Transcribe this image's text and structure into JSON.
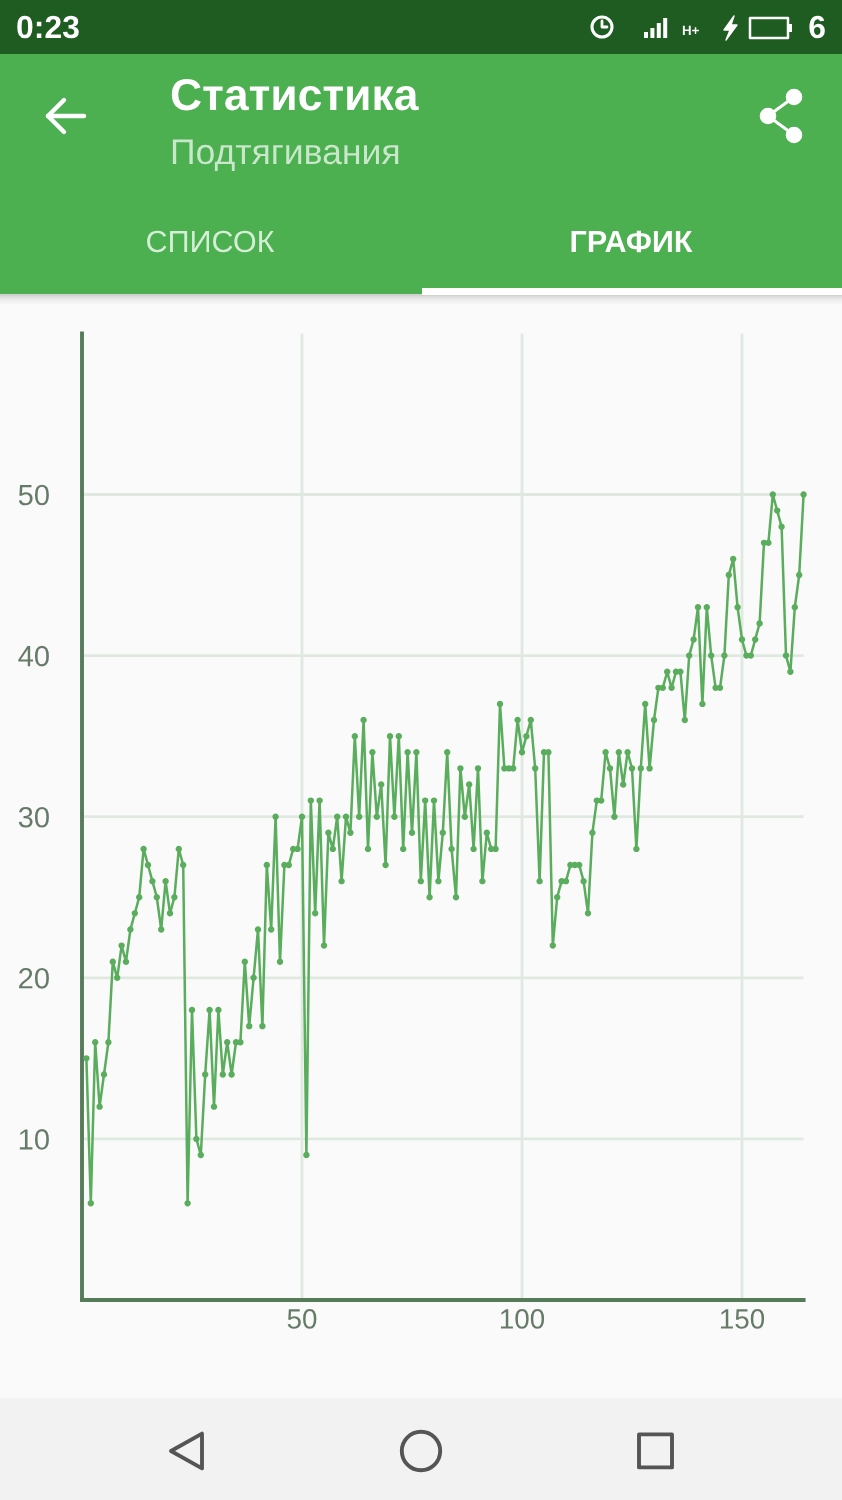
{
  "chart_data": {
    "type": "line",
    "title": "Статистика",
    "subtitle": "Подтягивания",
    "annotations": [
      "0:23",
      "H+",
      "6",
      "СПИСОК",
      "ГРАФИК"
    ],
    "x": [
      1,
      2,
      3,
      4,
      5,
      6,
      7,
      8,
      9,
      10,
      11,
      12,
      13,
      14,
      15,
      16,
      17,
      18,
      19,
      20,
      21,
      22,
      23,
      24,
      25,
      26,
      27,
      28,
      29,
      30,
      31,
      32,
      33,
      34,
      35,
      36,
      37,
      38,
      39,
      40,
      41,
      42,
      43,
      44,
      45,
      46,
      47,
      48,
      49,
      50,
      51,
      52,
      53,
      54,
      55,
      56,
      57,
      58,
      59,
      60,
      61,
      62,
      63,
      64,
      65,
      66,
      67,
      68,
      69,
      70,
      71,
      72,
      73,
      74,
      75,
      76,
      77,
      78,
      79,
      80,
      81,
      82,
      83,
      84,
      85,
      86,
      87,
      88,
      89,
      90,
      91,
      92,
      93,
      94,
      95,
      96,
      97,
      98,
      99,
      100,
      101,
      102,
      103,
      104,
      105,
      106,
      107,
      108,
      109,
      110,
      111,
      112,
      113,
      114,
      115,
      116,
      117,
      118,
      119,
      120,
      121,
      122,
      123,
      124,
      125,
      126,
      127,
      128,
      129,
      130,
      131,
      132,
      133,
      134,
      135,
      136,
      137,
      138,
      139,
      140,
      141,
      142,
      143,
      144,
      145,
      146,
      147,
      148,
      149,
      150,
      151,
      152,
      153,
      154,
      155,
      156,
      157,
      158,
      159,
      160,
      161,
      162,
      163,
      164
    ],
    "series": [
      {
        "color": "#5aad5c",
        "values": [
          15,
          6,
          16,
          12,
          14,
          16,
          21,
          20,
          22,
          21,
          23,
          24,
          25,
          28,
          27,
          26,
          25,
          23,
          26,
          24,
          25,
          28,
          27,
          6,
          18,
          10,
          9,
          14,
          18,
          12,
          18,
          14,
          16,
          14,
          16,
          16,
          21,
          17,
          20,
          23,
          17,
          27,
          23,
          30,
          21,
          27,
          27,
          28,
          28,
          30,
          9,
          31,
          24,
          31,
          22,
          29,
          28,
          30,
          26,
          30,
          29,
          35,
          30,
          36,
          28,
          34,
          30,
          32,
          27,
          35,
          30,
          35,
          28,
          34,
          29,
          34,
          26,
          31,
          25,
          31,
          26,
          29,
          34,
          28,
          25,
          33,
          30,
          32,
          28,
          33,
          26,
          29,
          28,
          28,
          37,
          33,
          33,
          33,
          36,
          34,
          35,
          36,
          33,
          26,
          34,
          34,
          22,
          25,
          26,
          26,
          27,
          27,
          27,
          26,
          24,
          29,
          31,
          31,
          34,
          33,
          30,
          34,
          32,
          34,
          33,
          28,
          33,
          37,
          33,
          36,
          38,
          38,
          39,
          38,
          39,
          39,
          36,
          40,
          41,
          43,
          37,
          43,
          40,
          38,
          38,
          40,
          45,
          46,
          43,
          41,
          40,
          40,
          41,
          42,
          47,
          47,
          50,
          49,
          48,
          40,
          39,
          43,
          45,
          50
        ]
      }
    ],
    "xlim": [
      0,
      164
    ],
    "xticks": [
      50,
      100,
      150
    ],
    "ylim": [
      0,
      60
    ],
    "yticks": [
      10,
      20,
      30,
      40,
      50
    ],
    "grid": true,
    "marker": "circle",
    "line_style": "solid"
  }
}
